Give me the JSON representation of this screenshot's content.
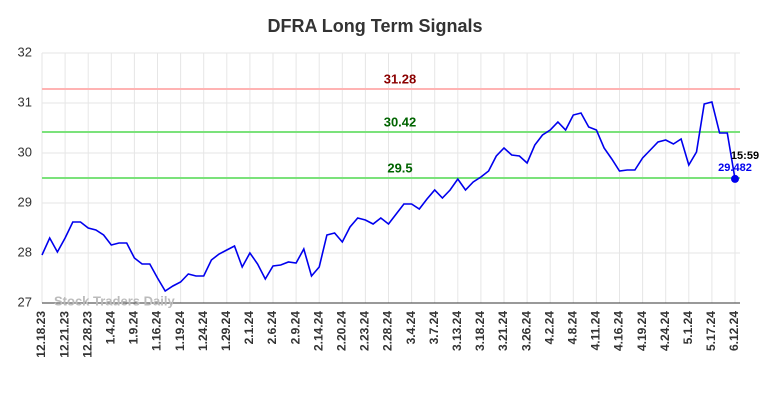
{
  "chart_data": {
    "type": "line",
    "title": "DFRA Long Term Signals",
    "categories": [
      "12.18.23",
      null,
      null,
      "12.21.23",
      null,
      null,
      "12.28.23",
      null,
      null,
      "1.4.24",
      null,
      null,
      "1.9.24",
      null,
      null,
      "1.16.24",
      null,
      null,
      "1.19.24",
      null,
      null,
      "1.24.24",
      null,
      null,
      "1.29.24",
      null,
      null,
      "2.1.24",
      null,
      null,
      "2.6.24",
      null,
      null,
      "2.9.24",
      null,
      null,
      "2.14.24",
      null,
      null,
      "2.20.24",
      null,
      null,
      "2.23.24",
      null,
      null,
      "2.28.24",
      null,
      null,
      "3.4.24",
      null,
      null,
      "3.7.24",
      null,
      null,
      "3.13.24",
      null,
      null,
      "3.18.24",
      null,
      null,
      "3.21.24",
      null,
      null,
      "3.26.24",
      null,
      null,
      "4.2.24",
      null,
      null,
      "4.8.24",
      null,
      null,
      "4.11.24",
      null,
      null,
      "4.16.24",
      null,
      null,
      "4.19.24",
      null,
      null,
      "4.24.24",
      null,
      null,
      "5.1.24",
      null,
      null,
      "5.17.24",
      null,
      null,
      "6.12.24"
    ],
    "series": [
      {
        "name": "DFRA",
        "color": "#0000ee",
        "values": [
          27.96,
          28.3,
          28.02,
          28.3,
          28.62,
          28.62,
          28.5,
          28.46,
          28.36,
          28.16,
          28.2,
          28.2,
          27.9,
          27.78,
          27.78,
          27.5,
          27.24,
          27.34,
          27.42,
          27.58,
          27.54,
          27.54,
          27.86,
          27.98,
          28.06,
          28.14,
          27.72,
          28.0,
          27.78,
          27.48,
          27.74,
          27.76,
          27.82,
          27.8,
          28.08,
          27.54,
          27.72,
          28.36,
          28.4,
          28.22,
          28.52,
          28.7,
          28.66,
          28.58,
          28.7,
          28.58,
          28.78,
          28.98,
          28.98,
          28.88,
          29.08,
          29.26,
          29.1,
          29.26,
          29.48,
          29.26,
          29.42,
          29.52,
          29.64,
          29.94,
          30.1,
          29.96,
          29.94,
          29.8,
          30.16,
          30.36,
          30.46,
          30.62,
          30.46,
          30.76,
          30.8,
          30.52,
          30.46,
          30.1,
          29.88,
          29.64,
          29.66,
          29.66,
          29.9,
          30.06,
          30.22,
          30.26,
          30.18,
          30.28,
          29.76,
          30.02,
          30.98,
          31.02,
          30.4,
          30.4,
          29.482
        ]
      }
    ],
    "hlines": [
      {
        "value": 31.28,
        "color": "#ffb3b3",
        "label_color": "#8b0000"
      },
      {
        "value": 30.42,
        "color": "#7be27b",
        "label_color": "#006400"
      },
      {
        "value": 29.5,
        "color": "#7be27b",
        "label_color": "#006400"
      }
    ],
    "last_time": "15:59",
    "watermark": "Stock Traders Daily",
    "ylim": [
      27,
      32
    ],
    "yticks": [
      27,
      28,
      29,
      30,
      31,
      32
    ],
    "grid": true
  }
}
